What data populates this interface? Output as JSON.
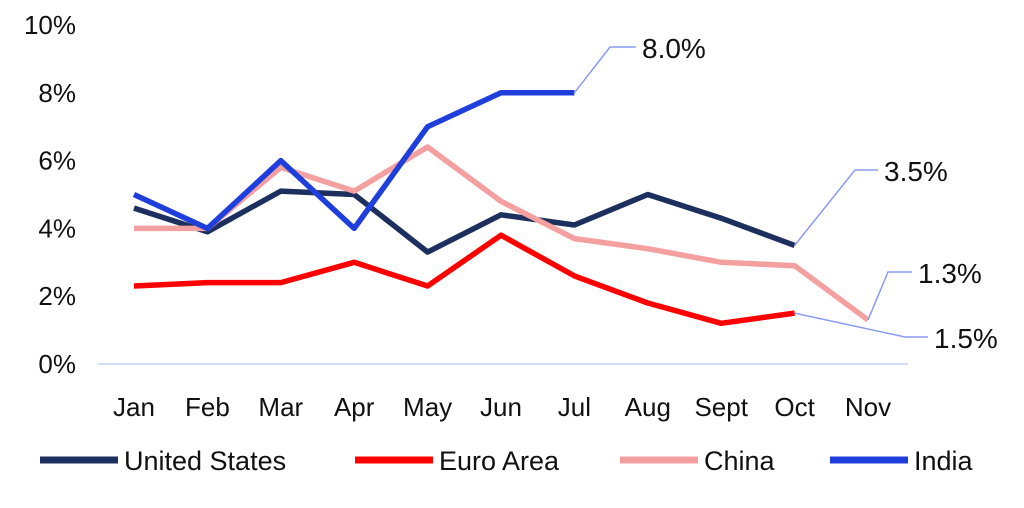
{
  "chart_data": {
    "type": "line",
    "categories": [
      "Jan",
      "Feb",
      "Mar",
      "Apr",
      "May",
      "Jun",
      "Jul",
      "Aug",
      "Sept",
      "Oct",
      "Nov"
    ],
    "ylim": [
      0,
      10
    ],
    "yticks": [
      0,
      2,
      4,
      6,
      8,
      10
    ],
    "ytick_labels": [
      "0%",
      "2%",
      "4%",
      "6%",
      "8%",
      "10%"
    ],
    "grid": false,
    "legend_position": "bottom",
    "series": [
      {
        "name": "United States",
        "color": "#1c2f5e",
        "values": [
          4.6,
          3.9,
          5.1,
          5.0,
          3.3,
          4.4,
          4.1,
          5.0,
          4.3,
          3.5,
          null
        ]
      },
      {
        "name": "Euro Area",
        "color": "#ff0000",
        "values": [
          2.3,
          2.4,
          2.4,
          3.0,
          2.3,
          3.8,
          2.6,
          1.8,
          1.2,
          1.5,
          null
        ]
      },
      {
        "name": "China",
        "color": "#f4a0a0",
        "values": [
          4.0,
          4.0,
          5.8,
          5.1,
          6.4,
          4.8,
          3.7,
          3.4,
          3.0,
          2.9,
          1.3
        ]
      },
      {
        "name": "India",
        "color": "#1f3fdc",
        "values": [
          5.0,
          4.0,
          6.0,
          4.0,
          7.0,
          8.0,
          8.0,
          null,
          null,
          null,
          null
        ]
      }
    ],
    "annotations": [
      {
        "text": "8.0%",
        "series": "India",
        "index": 6
      },
      {
        "text": "3.5%",
        "series": "United States",
        "index": 9
      },
      {
        "text": "1.3%",
        "series": "China",
        "index": 10
      },
      {
        "text": "1.5%",
        "series": "Euro Area",
        "index": 9
      }
    ]
  }
}
